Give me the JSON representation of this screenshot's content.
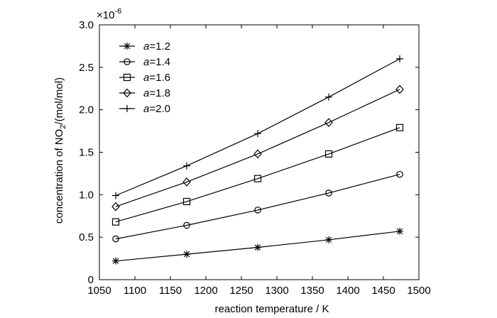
{
  "chart_data": {
    "type": "line",
    "title": "",
    "xlabel": "reaction temperature / K",
    "ylabel_prefix": "concentration of NO",
    "ylabel_subscript": "2",
    "ylabel_suffix": "/(mol/mol)",
    "y_multiplier_base": "×10",
    "y_multiplier_exp": "-6",
    "xlim": [
      1050,
      1500
    ],
    "ylim": [
      0,
      3.0
    ],
    "xticks": [
      "1050",
      "1100",
      "1150",
      "1200",
      "1250",
      "1300",
      "1350",
      "1400",
      "1450",
      "1500"
    ],
    "yticks": [
      "0",
      "0.5",
      "1.0",
      "1.5",
      "2.0",
      "2.5",
      "3.0"
    ],
    "grid": false,
    "legend_position": "top-left",
    "legend_var": "a",
    "x": [
      1073,
      1173,
      1273,
      1373,
      1473
    ],
    "series": [
      {
        "name": "=1.2",
        "marker": "star",
        "values": [
          0.22,
          0.3,
          0.38,
          0.47,
          0.57
        ]
      },
      {
        "name": "=1.4",
        "marker": "circle",
        "values": [
          0.48,
          0.64,
          0.82,
          1.02,
          1.24
        ]
      },
      {
        "name": "=1.6",
        "marker": "square",
        "values": [
          0.68,
          0.92,
          1.19,
          1.48,
          1.79
        ]
      },
      {
        "name": "=1.8",
        "marker": "diamond",
        "values": [
          0.86,
          1.15,
          1.48,
          1.85,
          2.24
        ]
      },
      {
        "name": "=2.0",
        "marker": "plus",
        "values": [
          0.99,
          1.34,
          1.72,
          2.15,
          2.6
        ]
      }
    ]
  }
}
